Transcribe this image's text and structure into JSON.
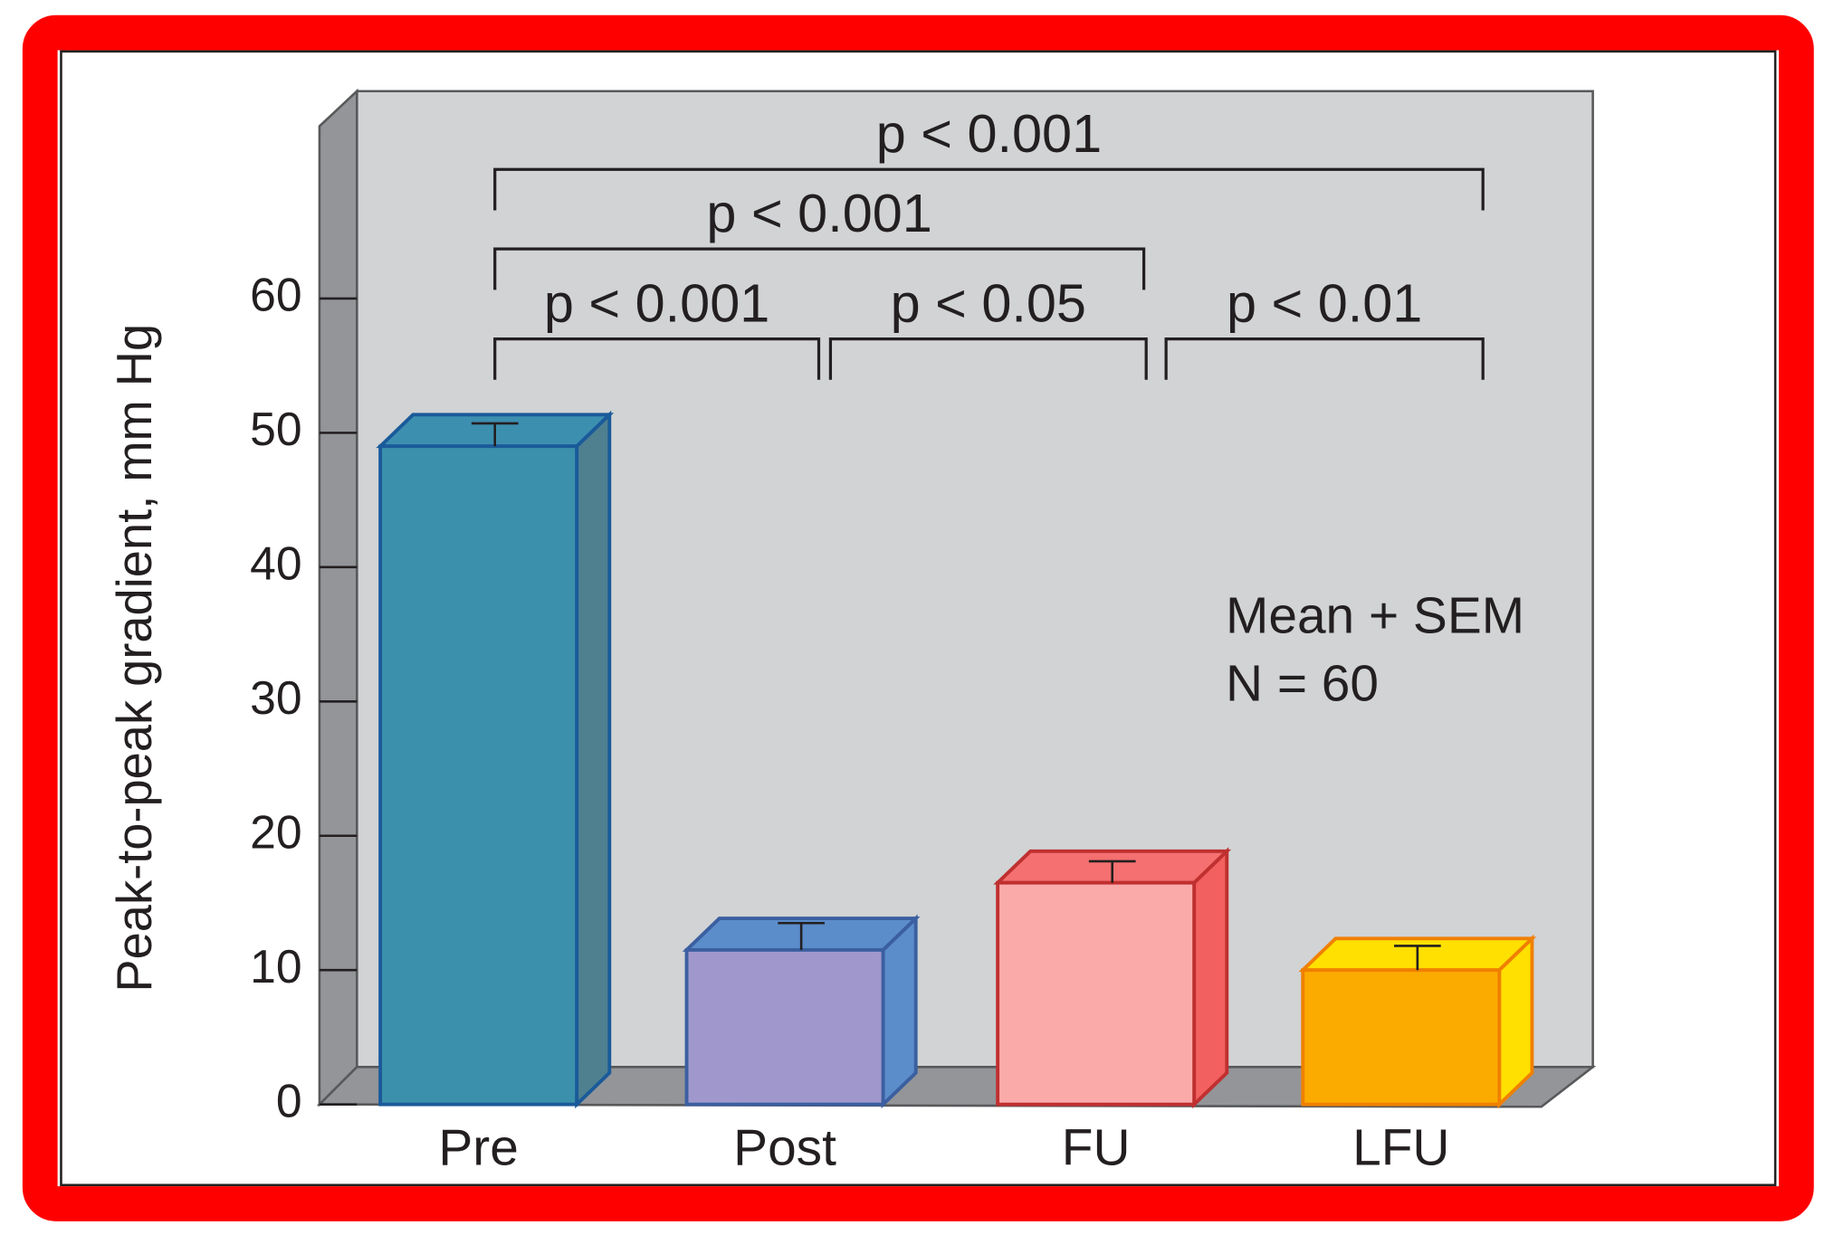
{
  "chart_data": {
    "type": "bar3d",
    "ylabel": "Peak-to-peak gradient, mm Hg",
    "categories": [
      "Pre",
      "Post",
      "FU",
      "LFU"
    ],
    "values": [
      49,
      11.5,
      16.5,
      10
    ],
    "errors": [
      1.7,
      2,
      1.6,
      1.8
    ],
    "colors": [
      "#3b91ab",
      "#a098cc",
      "#fbaaaa",
      "#fbab00"
    ],
    "ylim": [
      0,
      75
    ],
    "yticks": [
      0,
      10,
      20,
      30,
      40,
      50,
      60
    ],
    "comparisons": [
      {
        "from": "Pre",
        "to": "Post",
        "label": "p < 0.001"
      },
      {
        "from": "Post",
        "to": "FU",
        "label": "p < 0.05"
      },
      {
        "from": "FU",
        "to": "LFU",
        "label": "p < 0.01"
      },
      {
        "from": "Pre",
        "to": "FU",
        "label": "p < 0.001"
      },
      {
        "from": "Pre",
        "to": "LFU",
        "label": "p < 0.001"
      }
    ],
    "annotations": [
      "Mean + SEM",
      "N = 60"
    ]
  }
}
